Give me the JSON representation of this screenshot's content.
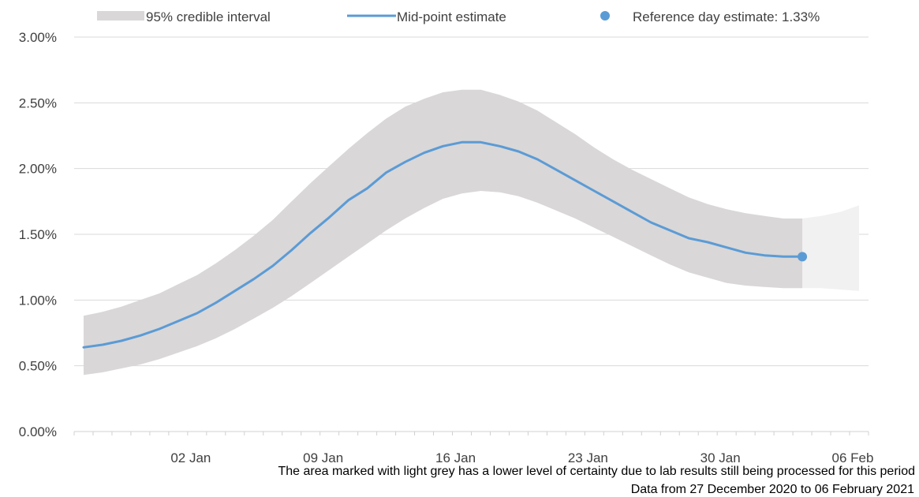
{
  "chart_data": {
    "type": "area",
    "x_start": "2020-12-27",
    "x_end": "2021-02-06",
    "x_ticks": [
      "02 Jan",
      "09 Jan",
      "16 Jan",
      "23 Jan",
      "30 Jan",
      "06 Feb"
    ],
    "x_tick_dates": [
      "2021-01-02",
      "2021-01-09",
      "2021-01-16",
      "2021-01-23",
      "2021-01-30",
      "2021-02-06"
    ],
    "y_ticks": [
      "0.00%",
      "0.50%",
      "1.00%",
      "1.50%",
      "2.00%",
      "2.50%",
      "3.00%"
    ],
    "y_tick_values": [
      0,
      0.5,
      1.0,
      1.5,
      2.0,
      2.5,
      3.0
    ],
    "ylim": [
      0,
      3.0
    ],
    "grid": true,
    "legend_position": "top",
    "legend": {
      "interval": "95% credible interval",
      "midpoint": "Mid-point estimate",
      "reference": "Reference day estimate: 1.33%"
    },
    "x": [
      "2020-12-27",
      "2020-12-28",
      "2020-12-29",
      "2020-12-30",
      "2020-12-31",
      "2021-01-01",
      "2021-01-02",
      "2021-01-03",
      "2021-01-04",
      "2021-01-05",
      "2021-01-06",
      "2021-01-07",
      "2021-01-08",
      "2021-01-09",
      "2021-01-10",
      "2021-01-11",
      "2021-01-12",
      "2021-01-13",
      "2021-01-14",
      "2021-01-15",
      "2021-01-16",
      "2021-01-17",
      "2021-01-18",
      "2021-01-19",
      "2021-01-20",
      "2021-01-21",
      "2021-01-22",
      "2021-01-23",
      "2021-01-24",
      "2021-01-25",
      "2021-01-26",
      "2021-01-27",
      "2021-01-28",
      "2021-01-29",
      "2021-01-30",
      "2021-01-31",
      "2021-02-01",
      "2021-02-02",
      "2021-02-03"
    ],
    "series": [
      {
        "name": "Mid-point estimate",
        "values": [
          0.64,
          0.66,
          0.69,
          0.73,
          0.78,
          0.84,
          0.9,
          0.98,
          1.07,
          1.16,
          1.26,
          1.38,
          1.51,
          1.63,
          1.76,
          1.85,
          1.97,
          2.05,
          2.12,
          2.17,
          2.2,
          2.2,
          2.17,
          2.13,
          2.07,
          1.99,
          1.91,
          1.83,
          1.75,
          1.67,
          1.59,
          1.53,
          1.47,
          1.44,
          1.4,
          1.36,
          1.34,
          1.33,
          1.33
        ]
      },
      {
        "name": "95% credible interval (upper)",
        "values": [
          0.88,
          0.91,
          0.95,
          1.0,
          1.05,
          1.12,
          1.19,
          1.28,
          1.38,
          1.49,
          1.61,
          1.75,
          1.89,
          2.02,
          2.15,
          2.27,
          2.38,
          2.47,
          2.53,
          2.58,
          2.6,
          2.6,
          2.56,
          2.51,
          2.44,
          2.35,
          2.26,
          2.16,
          2.07,
          1.99,
          1.92,
          1.85,
          1.78,
          1.73,
          1.69,
          1.66,
          1.64,
          1.62,
          1.62
        ]
      },
      {
        "name": "95% credible interval (lower)",
        "values": [
          0.43,
          0.45,
          0.48,
          0.51,
          0.55,
          0.6,
          0.65,
          0.71,
          0.78,
          0.86,
          0.94,
          1.03,
          1.13,
          1.23,
          1.33,
          1.43,
          1.53,
          1.62,
          1.7,
          1.77,
          1.81,
          1.83,
          1.82,
          1.79,
          1.74,
          1.68,
          1.62,
          1.55,
          1.48,
          1.41,
          1.34,
          1.27,
          1.21,
          1.17,
          1.13,
          1.11,
          1.1,
          1.09,
          1.09
        ]
      }
    ],
    "uncertain_period": {
      "x": [
        "2021-02-03",
        "2021-02-04",
        "2021-02-05",
        "2021-02-06"
      ],
      "upper": [
        1.62,
        1.64,
        1.67,
        1.72
      ],
      "lower": [
        1.09,
        1.09,
        1.08,
        1.07
      ]
    },
    "reference_point": {
      "x": "2021-02-03",
      "y": 1.33
    },
    "footnote": "The area marked with light grey has a lower level of certainty due to lab results still being processed for this period",
    "source": "Data from 27 December  2020 to 06 February 2021"
  }
}
